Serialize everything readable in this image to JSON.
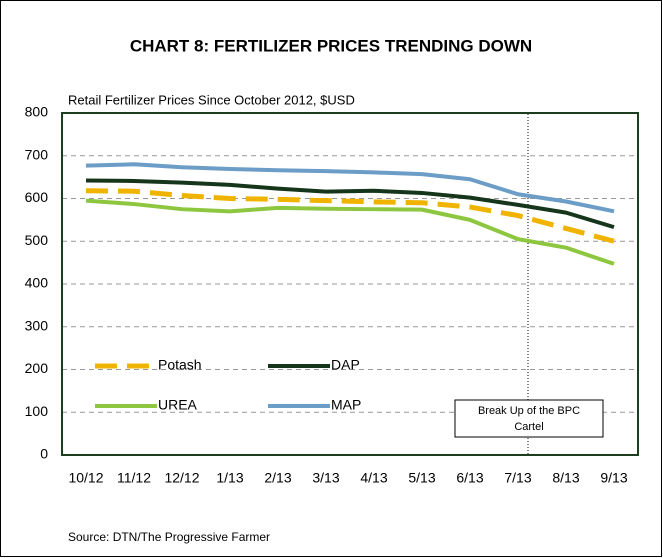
{
  "chart_data": {
    "type": "line",
    "title": "CHART 8: FERTILIZER PRICES TRENDING DOWN",
    "subtitle": "Retail Fertilizer Prices Since October 2012, $USD",
    "source": "Source: DTN/The Progressive Farmer",
    "annotation": "Break Up of the BPC Cartel",
    "categories": [
      "10/12",
      "11/12",
      "12/12",
      "1/13",
      "2/13",
      "3/13",
      "4/13",
      "5/13",
      "6/13",
      "7/13",
      "8/13",
      "9/13"
    ],
    "series": [
      {
        "name": "Potash",
        "color": "#f0b400",
        "dashed": true,
        "values": [
          618,
          617,
          607,
          600,
          598,
          595,
          592,
          590,
          580,
          560,
          530,
          500
        ]
      },
      {
        "name": "DAP",
        "color": "#16361b",
        "dashed": false,
        "values": [
          642,
          641,
          637,
          632,
          623,
          616,
          618,
          613,
          602,
          585,
          567,
          533
        ]
      },
      {
        "name": "UREA",
        "color": "#8dc63f",
        "dashed": false,
        "values": [
          595,
          587,
          575,
          570,
          578,
          576,
          575,
          574,
          550,
          505,
          485,
          447
        ]
      },
      {
        "name": "MAP",
        "color": "#6b9dc6",
        "dashed": false,
        "values": [
          677,
          680,
          673,
          669,
          666,
          664,
          661,
          657,
          645,
          610,
          593,
          570
        ]
      }
    ],
    "ylim": [
      0,
      800
    ],
    "yticks": [
      0,
      100,
      200,
      300,
      400,
      500,
      600,
      700,
      800
    ],
    "grid": true
  }
}
